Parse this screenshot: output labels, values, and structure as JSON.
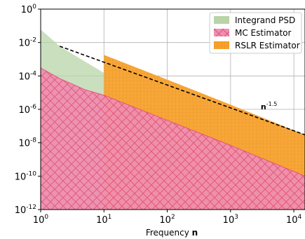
{
  "chart_data": {
    "type": "area",
    "xscale": "log",
    "yscale": "log",
    "xlim": [
      1,
      15000
    ],
    "ylim": [
      1e-12,
      1
    ],
    "grid": true,
    "xlabel": "Frequency",
    "xlabel_bold": "n",
    "ylabel": "",
    "title": "",
    "x_ticks": [
      {
        "value": 1,
        "base": "10",
        "exp": "0"
      },
      {
        "value": 10,
        "base": "10",
        "exp": "1"
      },
      {
        "value": 100,
        "base": "10",
        "exp": "2"
      },
      {
        "value": 1000,
        "base": "10",
        "exp": "3"
      },
      {
        "value": 10000,
        "base": "10",
        "exp": "4"
      }
    ],
    "y_ticks": [
      {
        "value": 1,
        "base": "10",
        "exp": "0"
      },
      {
        "value": 0.01,
        "base": "10",
        "exp": "-2"
      },
      {
        "value": 0.0001,
        "base": "10",
        "exp": "-4"
      },
      {
        "value": 1e-06,
        "base": "10",
        "exp": "-6"
      },
      {
        "value": 1e-08,
        "base": "10",
        "exp": "-8"
      },
      {
        "value": 1e-10,
        "base": "10",
        "exp": "-10"
      },
      {
        "value": 1e-12,
        "base": "10",
        "exp": "-12"
      }
    ],
    "legend_position": "top-right",
    "series": [
      {
        "name": "Integrand PSD",
        "color": "#b8d4a8",
        "hatch": "none",
        "x": [
          1,
          2,
          10
        ],
        "y": [
          0.06,
          0.006,
          0.00015
        ]
      },
      {
        "name": "MC Estimator",
        "color": "#f48aa6",
        "hatch": "cross",
        "x": [
          1,
          2,
          5,
          10,
          100,
          1000,
          15000
        ],
        "y": [
          0.0003,
          7e-05,
          1.5e-05,
          7e-06,
          2.2e-07,
          7e-09,
          1e-10
        ]
      },
      {
        "name": "RSLR Estimator",
        "color": "#f5a623",
        "hatch": "grid",
        "x": [
          10,
          100,
          1000,
          15000
        ],
        "y": [
          0.0018,
          6e-05,
          1.9e-06,
          3e-08
        ]
      }
    ],
    "reference_line": {
      "label_base": "n",
      "label_exp": "-1.5",
      "style": "dashed",
      "color": "#000000",
      "x": [
        2,
        15000
      ],
      "y": [
        0.006,
        3e-08
      ],
      "label_x": 3000,
      "label_y": 1e-06
    }
  }
}
